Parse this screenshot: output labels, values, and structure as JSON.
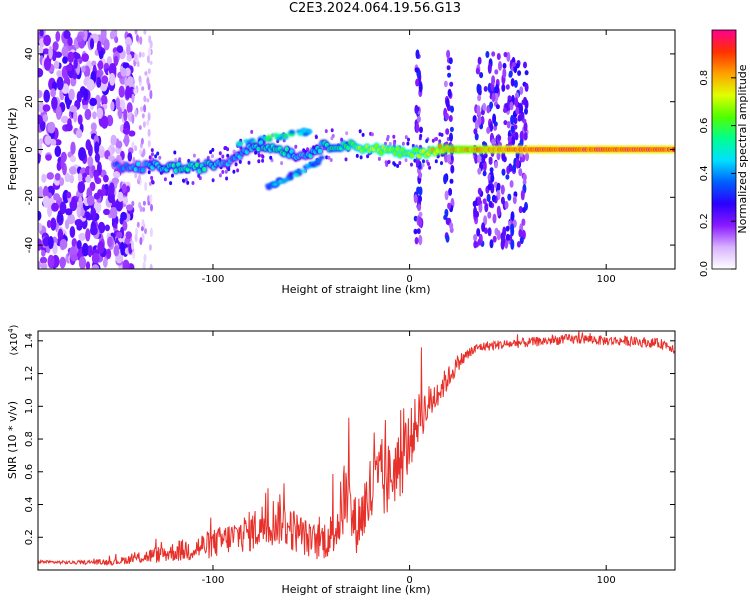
{
  "title": "C2E3.2024.064.19.56.G13",
  "chart_data": [
    {
      "type": "heatmap",
      "xlabel": "Height of straight line (km)",
      "ylabel": "Frequency (Hz)",
      "xlim": [
        -189,
        135
      ],
      "ylim": [
        -50,
        50
      ],
      "xticks": [
        -100,
        0,
        100
      ],
      "yticks": [
        -40,
        -20,
        0,
        20,
        40
      ],
      "colorbar": {
        "label": "Normalized spectral amplitude",
        "range": [
          0,
          1
        ],
        "ticks": [
          0.0,
          0.2,
          0.4,
          0.6,
          0.8
        ],
        "colors": [
          "#ffffff",
          "#d9b3ff",
          "#8a1aff",
          "#2a00ff",
          "#0060ff",
          "#00e0ff",
          "#00ff90",
          "#50ff00",
          "#e0ff00",
          "#ffa000",
          "#ff3000",
          "#ff0090"
        ]
      },
      "ridge": [
        {
          "x": -185,
          "y": -6,
          "amp": 0.22
        },
        {
          "x": -160,
          "y": -6,
          "amp": 0.25
        },
        {
          "x": -145,
          "y": -8,
          "amp": 0.45
        },
        {
          "x": -130,
          "y": -7,
          "amp": 0.5
        },
        {
          "x": -110,
          "y": -8,
          "amp": 0.6
        },
        {
          "x": -92,
          "y": -5,
          "amp": 0.45
        },
        {
          "x": -80,
          "y": 2,
          "amp": 0.5
        },
        {
          "x": -65,
          "y": 0,
          "amp": 0.6
        },
        {
          "x": -55,
          "y": -3,
          "amp": 0.45
        },
        {
          "x": -45,
          "y": 1,
          "amp": 0.55
        },
        {
          "x": -35,
          "y": 2,
          "amp": 0.6
        },
        {
          "x": -25,
          "y": 1,
          "amp": 0.7
        },
        {
          "x": -15,
          "y": 0,
          "amp": 0.75
        },
        {
          "x": 0,
          "y": -2,
          "amp": 0.7
        },
        {
          "x": 15,
          "y": 0,
          "amp": 0.85
        },
        {
          "x": 60,
          "y": 0,
          "amp": 1.0
        },
        {
          "x": 135,
          "y": 0,
          "amp": 1.0
        }
      ]
    },
    {
      "type": "line",
      "xlabel": "Height of straight line (km)",
      "ylabel": "SNR (10 * v/v)",
      "multiplier": "(x10",
      "multiplier_exp": "4",
      "multiplier_close": ")",
      "xlim": [
        -189,
        135
      ],
      "ylim": [
        0,
        14600
      ],
      "xticks": [
        -100,
        0,
        100
      ],
      "yticks": [
        2000,
        4000,
        6000,
        8000,
        10000,
        12000,
        14000
      ],
      "ytick_labels": [
        "0.2",
        "0.4",
        "0.6",
        "0.8",
        "1.0",
        "1.2",
        "1.4"
      ],
      "color": "#e8302a",
      "series": [
        {
          "x": [
            -189,
            -170,
            -150,
            -140,
            -130,
            -120,
            -110,
            -100,
            -90,
            -80,
            -72,
            -65,
            -60,
            -55,
            -50,
            -45,
            -40,
            -36,
            -33,
            -30,
            -27,
            -24,
            -20,
            -16,
            -12,
            -8,
            -4,
            0,
            4,
            8,
            12,
            16,
            20,
            25,
            30,
            35,
            40,
            50,
            60,
            70,
            80,
            90,
            100,
            110,
            120,
            130,
            135
          ],
          "y": [
            500,
            450,
            500,
            700,
            900,
            1100,
            1300,
            1600,
            2000,
            2400,
            2900,
            3100,
            2500,
            2200,
            1700,
            1800,
            2100,
            3000,
            4600,
            3400,
            2700,
            3500,
            4600,
            5200,
            5300,
            6100,
            6500,
            7900,
            9200,
            9800,
            10500,
            11100,
            11800,
            12700,
            13200,
            13600,
            13700,
            13800,
            13900,
            14000,
            14100,
            14100,
            14000,
            14000,
            13900,
            13800,
            13500
          ],
          "noise": [
            100,
            100,
            200,
            300,
            500,
            600,
            800,
            900,
            1000,
            1300,
            1500,
            1600,
            1400,
            1200,
            1100,
            1200,
            1400,
            1800,
            2500,
            2000,
            1700,
            2000,
            2600,
            2600,
            2300,
            2200,
            2100,
            1900,
            1600,
            1300,
            1100,
            900,
            700,
            500,
            400,
            300,
            300,
            300,
            300,
            300,
            300,
            300,
            300,
            300,
            300,
            300,
            300
          ],
          "spikes": [
            {
              "x": -72,
              "y": 5000
            },
            {
              "x": -64,
              "y": 5300
            },
            {
              "x": -31,
              "y": 9300
            },
            {
              "x": -18,
              "y": 8400
            },
            {
              "x": -14,
              "y": 8000
            },
            {
              "x": -2,
              "y": 9000
            },
            {
              "x": 6,
              "y": 13600
            },
            {
              "x": 55,
              "y": 14400
            },
            {
              "x": 86,
              "y": 14600
            }
          ]
        }
      ]
    }
  ]
}
